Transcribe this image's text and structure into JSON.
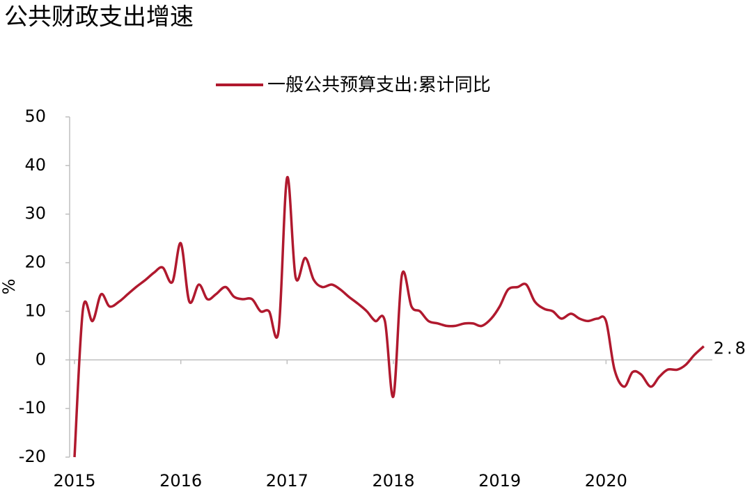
{
  "chart_data": {
    "type": "line",
    "title": "公共财政支出增速",
    "y_label": "%",
    "x": [
      2015,
      2015.08,
      2015.17,
      2015.25,
      2015.33,
      2015.42,
      2015.5,
      2015.58,
      2015.67,
      2015.75,
      2015.83,
      2015.92,
      2016,
      2016.08,
      2016.17,
      2016.25,
      2016.33,
      2016.42,
      2016.5,
      2016.58,
      2016.67,
      2016.75,
      2016.83,
      2016.92,
      2017,
      2017.08,
      2017.17,
      2017.25,
      2017.33,
      2017.42,
      2017.5,
      2017.58,
      2017.67,
      2017.75,
      2017.83,
      2017.92,
      2018,
      2018.08,
      2018.17,
      2018.25,
      2018.33,
      2018.42,
      2018.5,
      2018.58,
      2018.67,
      2018.75,
      2018.83,
      2018.92,
      2019,
      2019.08,
      2019.17,
      2019.25,
      2019.33,
      2019.42,
      2019.5,
      2019.58,
      2019.67,
      2019.75,
      2019.83,
      2019.92,
      2020,
      2020.08,
      2020.17,
      2020.25,
      2020.33,
      2020.42,
      2020.5,
      2020.58,
      2020.67,
      2020.75,
      2020.83,
      2020.92
    ],
    "series": [
      {
        "name": "一般公共预算支出:累计同比",
        "color": "#b0192e",
        "values": [
          -20,
          10.5,
          8,
          13.5,
          11,
          12,
          13.5,
          15,
          16.5,
          18,
          19,
          16,
          24,
          12,
          15.5,
          12.5,
          13.5,
          15,
          13,
          12.5,
          12.5,
          10,
          10,
          6,
          37.5,
          17,
          21,
          16.5,
          15,
          15.5,
          14.5,
          13,
          11.5,
          10,
          8,
          8,
          -7.5,
          17.5,
          11,
          10,
          8,
          7.5,
          7,
          7,
          7.5,
          7.5,
          7,
          8.5,
          11,
          14.5,
          15,
          15.5,
          12,
          10.5,
          10,
          8.5,
          9.5,
          8.5,
          8,
          8.5,
          8,
          -2,
          -5.5,
          -2.5,
          -3,
          -5.5,
          -3.5,
          -2,
          -2,
          -1,
          1,
          2.8
        ]
      }
    ],
    "xlim": [
      2015,
      2021
    ],
    "xticks": [
      2015,
      2016,
      2017,
      2018,
      2019,
      2020
    ],
    "ylim": [
      -20,
      50
    ],
    "yticks": [
      -20,
      -10,
      0,
      10,
      20,
      30,
      40,
      50
    ]
  }
}
